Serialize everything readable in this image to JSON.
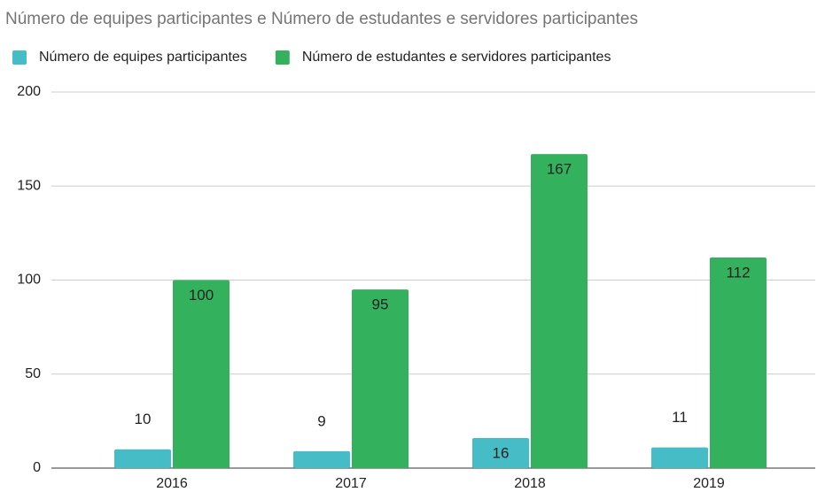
{
  "chart_data": {
    "type": "bar",
    "title": "Número de equipes participantes e Número de estudantes e servidores participantes",
    "categories": [
      "2016",
      "2017",
      "2018",
      "2019"
    ],
    "series": [
      {
        "name": "Número de equipes participantes",
        "color": "#46bdc6",
        "label_color": "#333333",
        "values": [
          10,
          9,
          16,
          11
        ]
      },
      {
        "name": "Número de estudantes e servidores participantes",
        "color": "#34b15d",
        "label_color": "#ffffff",
        "values": [
          100,
          95,
          167,
          112
        ]
      }
    ],
    "ylim": [
      0,
      200
    ],
    "yticks": [
      0,
      50,
      100,
      150,
      200
    ],
    "grid": true,
    "legend": "top"
  }
}
